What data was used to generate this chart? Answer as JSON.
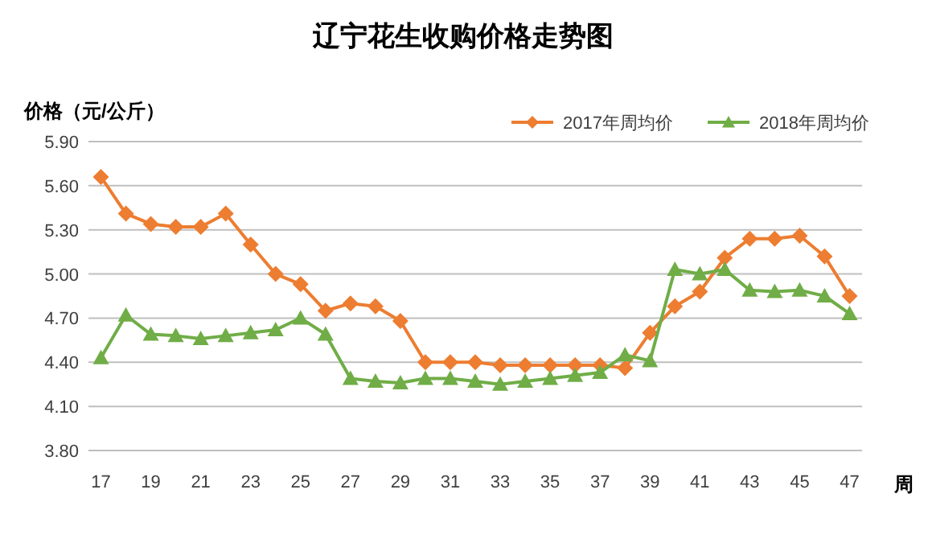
{
  "chart_data": {
    "type": "line",
    "title": "辽宁花生收购价格走势图",
    "ylabel": "价格（元/公斤）",
    "xlabel": "周",
    "categories": [
      "17",
      null,
      "19",
      null,
      "21",
      null,
      "23",
      null,
      "25",
      null,
      "27",
      null,
      "29",
      null,
      "31",
      null,
      "33",
      null,
      "35",
      null,
      "37",
      null,
      "39",
      null,
      "41",
      null,
      "43",
      null,
      "45",
      null,
      "47"
    ],
    "series": [
      {
        "name": "2017年周均价",
        "color": "#ed7d31",
        "marker": "diamond",
        "values": [
          5.66,
          5.41,
          5.34,
          5.32,
          5.32,
          5.41,
          5.2,
          5.0,
          4.93,
          4.75,
          4.8,
          4.78,
          4.68,
          4.4,
          4.4,
          4.4,
          4.38,
          4.38,
          4.38,
          4.38,
          4.38,
          4.36,
          4.6,
          4.78,
          4.88,
          5.11,
          5.24,
          5.24,
          5.26,
          5.12,
          4.85
        ]
      },
      {
        "name": "2018年周均价",
        "color": "#70ad47",
        "marker": "triangle",
        "values": [
          4.43,
          4.72,
          4.59,
          4.58,
          4.56,
          4.58,
          4.6,
          4.62,
          4.7,
          4.59,
          4.29,
          4.27,
          4.26,
          4.29,
          4.29,
          4.27,
          4.25,
          4.27,
          4.29,
          4.31,
          4.33,
          4.45,
          4.41,
          5.03,
          5.0,
          5.03,
          4.89,
          4.88,
          4.89,
          4.85,
          4.73
        ]
      }
    ],
    "ylim": [
      3.8,
      5.9
    ],
    "yticks": [
      {
        "value": 3.8,
        "label": "3.80"
      },
      {
        "value": 4.1,
        "label": "4.10"
      },
      {
        "value": 4.4,
        "label": "4.40"
      },
      {
        "value": 4.7,
        "label": "4.70"
      },
      {
        "value": 5.0,
        "label": "5.00"
      },
      {
        "value": 5.3,
        "label": "5.30"
      },
      {
        "value": 5.6,
        "label": "5.60"
      },
      {
        "value": 5.9,
        "label": "5.90"
      }
    ],
    "grid": "y",
    "legend": "top right"
  }
}
